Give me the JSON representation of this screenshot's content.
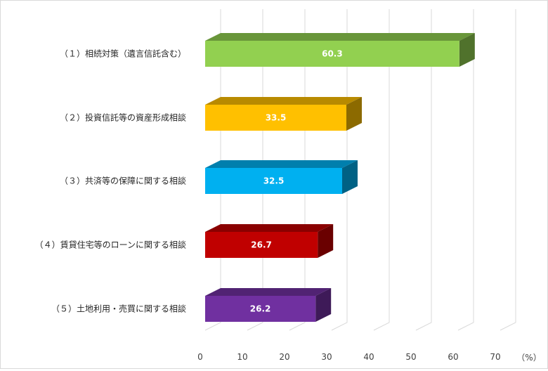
{
  "chart_data": {
    "type": "bar",
    "orientation": "horizontal",
    "style": "3d",
    "categories": [
      "（１）相続対策（遺言信託含む）",
      "（２）投資信託等の資産形成相談",
      "（３）共済等の保障に関する相談",
      "（４）賃貸住宅等のローンに関する相談",
      "（５）土地利用・売買に関する相談"
    ],
    "values": [
      60.3,
      33.5,
      32.5,
      26.7,
      26.2
    ],
    "value_labels": [
      "60.3",
      "33.5",
      "32.5",
      "26.7",
      "26.2"
    ],
    "colors": [
      "#92d050",
      "#ffc000",
      "#00b0f0",
      "#c00000",
      "#7030a0"
    ],
    "x_ticks": [
      "0",
      "10",
      "20",
      "30",
      "40",
      "50",
      "60",
      "70"
    ],
    "xlim": [
      0,
      70
    ],
    "unit_label": "（%）",
    "grid": true
  }
}
